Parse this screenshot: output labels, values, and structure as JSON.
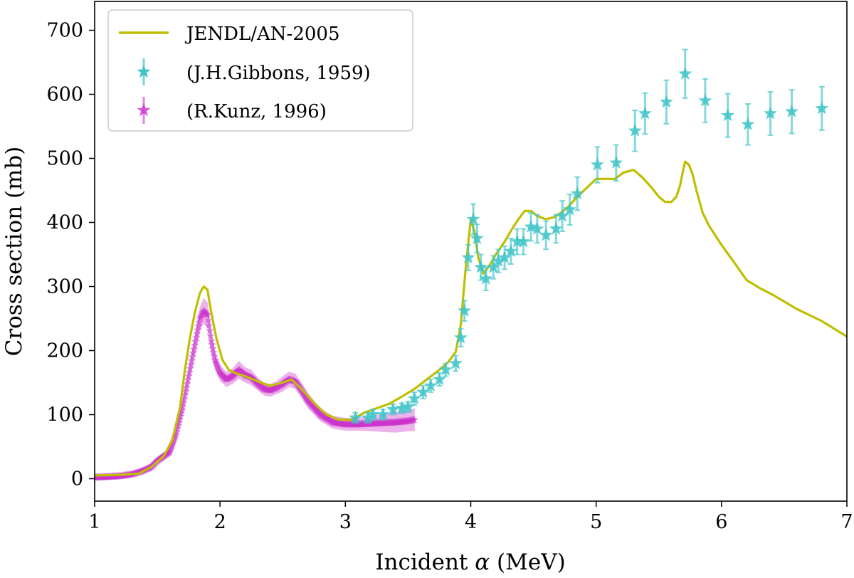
{
  "chart_data": {
    "type": "line",
    "title": "",
    "xlabel_main": "Incident ",
    "xlabel_symbol": "α",
    "xlabel_unit": " (MeV)",
    "ylabel": "Cross section (mb)",
    "xlim": [
      1,
      7
    ],
    "ylim": [
      -35,
      745
    ],
    "xticks": [
      "1",
      "2",
      "3",
      "4",
      "5",
      "6",
      "7"
    ],
    "yticks": [
      "0",
      "100",
      "200",
      "300",
      "400",
      "500",
      "600",
      "700"
    ],
    "legend_position": "top-left",
    "series": [
      {
        "name": "JENDL/AN-2005",
        "kind": "line",
        "color": "#bfbf00",
        "x": [
          1.0,
          1.2,
          1.35,
          1.45,
          1.55,
          1.62,
          1.68,
          1.72,
          1.76,
          1.8,
          1.84,
          1.87,
          1.9,
          1.93,
          1.97,
          2.02,
          2.07,
          2.12,
          2.2,
          2.3,
          2.4,
          2.5,
          2.57,
          2.65,
          2.75,
          2.85,
          2.95,
          3.05,
          3.15,
          3.25,
          3.35,
          3.45,
          3.55,
          3.65,
          3.75,
          3.82,
          3.88,
          3.92,
          3.96,
          4.0,
          4.03,
          4.06,
          4.1,
          4.14,
          4.2,
          4.27,
          4.33,
          4.38,
          4.43,
          4.48,
          4.53,
          4.6,
          4.66,
          4.72,
          4.78,
          4.85,
          4.93,
          5.0,
          5.08,
          5.15,
          5.22,
          5.3,
          5.37,
          5.44,
          5.5,
          5.55,
          5.6,
          5.64,
          5.67,
          5.69,
          5.71,
          5.74,
          5.77,
          5.8,
          5.85,
          5.9,
          6.0,
          6.1,
          6.2,
          6.3,
          6.4,
          6.6,
          6.8,
          7.0
        ],
        "y": [
          5,
          6,
          8,
          18,
          35,
          60,
          110,
          170,
          220,
          260,
          290,
          300,
          295,
          260,
          220,
          185,
          170,
          165,
          160,
          152,
          145,
          150,
          155,
          140,
          118,
          100,
          92,
          92,
          103,
          110,
          117,
          128,
          140,
          155,
          170,
          182,
          198,
          240,
          330,
          405,
          385,
          345,
          320,
          330,
          350,
          370,
          390,
          405,
          418,
          418,
          410,
          405,
          408,
          415,
          425,
          440,
          455,
          468,
          468,
          468,
          478,
          482,
          470,
          455,
          440,
          432,
          432,
          440,
          458,
          478,
          495,
          490,
          475,
          450,
          415,
          395,
          365,
          338,
          310,
          298,
          288,
          265,
          246,
          222
        ]
      },
      {
        "name": "(J.H.Gibbons, 1959)",
        "kind": "scatter",
        "color": "#40c4c8",
        "x": [
          3.08,
          3.18,
          3.22,
          3.3,
          3.38,
          3.45,
          3.5,
          3.55,
          3.62,
          3.68,
          3.75,
          3.8,
          3.88,
          3.92,
          3.95,
          3.98,
          4.02,
          4.05,
          4.08,
          4.12,
          4.18,
          4.22,
          4.27,
          4.32,
          4.37,
          4.42,
          4.48,
          4.53,
          4.6,
          4.68,
          4.73,
          4.79,
          4.85,
          5.01,
          5.16,
          5.31,
          5.39,
          5.56,
          5.71,
          5.87,
          6.05,
          6.21,
          6.39,
          6.56,
          6.8
        ],
        "y": [
          95,
          95,
          100,
          100,
          108,
          110,
          112,
          125,
          135,
          145,
          155,
          170,
          180,
          220,
          262,
          345,
          405,
          375,
          330,
          312,
          330,
          340,
          345,
          355,
          370,
          370,
          393,
          390,
          380,
          390,
          410,
          420,
          445,
          490,
          493,
          543,
          570,
          588,
          632,
          590,
          567,
          553,
          570,
          573,
          578
        ],
        "err": [
          8,
          8,
          8,
          8,
          8,
          8,
          8,
          10,
          10,
          10,
          10,
          10,
          12,
          14,
          16,
          20,
          24,
          22,
          20,
          18,
          18,
          18,
          18,
          20,
          20,
          20,
          22,
          22,
          22,
          22,
          24,
          24,
          26,
          28,
          28,
          32,
          32,
          34,
          38,
          34,
          34,
          32,
          34,
          34,
          34
        ]
      },
      {
        "name": "(R.Kunz, 1996)",
        "kind": "scatter-dense",
        "color": "#cc33cc",
        "x": [
          1.0,
          1.1,
          1.2,
          1.3,
          1.38,
          1.45,
          1.5,
          1.55,
          1.6,
          1.65,
          1.7,
          1.75,
          1.8,
          1.84,
          1.87,
          1.9,
          1.93,
          1.96,
          2.0,
          2.05,
          2.1,
          2.15,
          2.2,
          2.25,
          2.3,
          2.35,
          2.4,
          2.45,
          2.5,
          2.55,
          2.6,
          2.65,
          2.7,
          2.8,
          2.9,
          3.0,
          3.1,
          3.2,
          3.3,
          3.4,
          3.5,
          3.55
        ],
        "y": [
          2,
          3,
          4,
          7,
          12,
          18,
          28,
          35,
          42,
          70,
          110,
          160,
          210,
          250,
          262,
          255,
          215,
          185,
          165,
          155,
          160,
          170,
          162,
          158,
          148,
          140,
          138,
          142,
          148,
          155,
          152,
          138,
          122,
          100,
          88,
          85,
          85,
          86,
          87,
          88,
          90,
          92
        ],
        "err": [
          4,
          4,
          4,
          4,
          4,
          5,
          5,
          6,
          6,
          8,
          10,
          12,
          16,
          18,
          20,
          20,
          16,
          14,
          12,
          12,
          12,
          14,
          12,
          12,
          10,
          10,
          10,
          10,
          12,
          12,
          12,
          12,
          12,
          10,
          10,
          10,
          10,
          12,
          14,
          16,
          16,
          18
        ]
      }
    ]
  }
}
